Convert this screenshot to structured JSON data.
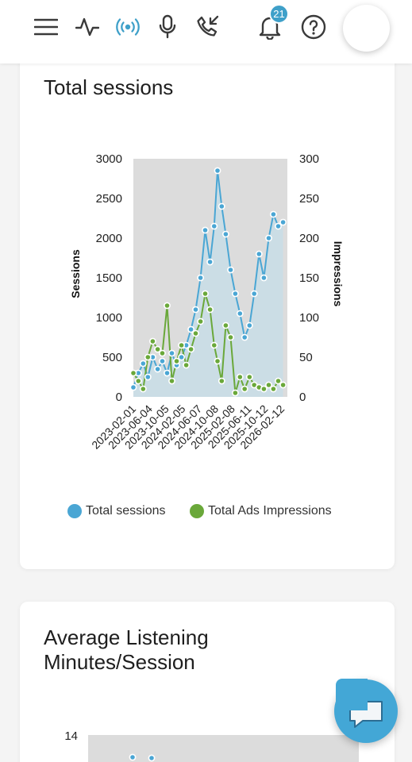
{
  "topbar": {
    "icons": [
      "menu-icon",
      "activity-icon",
      "broadcast-icon",
      "microphone-icon",
      "phone-incoming-icon",
      "bell-icon",
      "help-icon"
    ],
    "notification_count": "21",
    "accent_color": "#3fa0c9"
  },
  "card1": {
    "title": "Total sessions",
    "legend": [
      {
        "label": "Total sessions",
        "color": "#4aa6d4"
      },
      {
        "label": "Total Ads Impressions",
        "color": "#6aa83a"
      }
    ]
  },
  "card2": {
    "title": "Average Listening Minutes/Session",
    "y_tick_top": "14"
  },
  "chart_data": {
    "type": "line",
    "title": "",
    "ylabel": "Sessions",
    "y2label": "Impressions",
    "ylim": [
      0,
      3000
    ],
    "y2lim": [
      0,
      300
    ],
    "y_ticks": [
      "0",
      "500",
      "1000",
      "1500",
      "2000",
      "2500",
      "3000"
    ],
    "y2_ticks": [
      "0",
      "50",
      "100",
      "150",
      "200",
      "250",
      "300"
    ],
    "x_ticks": [
      "2023-02-01",
      "2023-06-04",
      "2023-10-05",
      "2024-02-05",
      "2024-06-07",
      "2024-10-08",
      "2025-02-08",
      "2025-06-11",
      "2025-10-12",
      "2026-02-12"
    ],
    "grid": false,
    "legend_position": "bottom",
    "series": [
      {
        "name": "Total sessions",
        "color": "#4aa6d4",
        "axis": "left",
        "points": [
          [
            "2023-02-01",
            120
          ],
          [
            "2023-03-10",
            300
          ],
          [
            "2023-04-15",
            420
          ],
          [
            "2023-05-20",
            250
          ],
          [
            "2023-06-25",
            500
          ],
          [
            "2023-08-01",
            350
          ],
          [
            "2023-09-05",
            450
          ],
          [
            "2023-10-10",
            300
          ],
          [
            "2023-11-15",
            550
          ],
          [
            "2023-12-20",
            400
          ],
          [
            "2024-01-25",
            500
          ],
          [
            "2024-03-01",
            650
          ],
          [
            "2024-04-05",
            850
          ],
          [
            "2024-05-10",
            1100
          ],
          [
            "2024-06-15",
            1500
          ],
          [
            "2024-07-20",
            2100
          ],
          [
            "2024-08-25",
            1700
          ],
          [
            "2024-09-25",
            2150
          ],
          [
            "2024-10-20",
            2850
          ],
          [
            "2024-11-20",
            2400
          ],
          [
            "2024-12-20",
            2050
          ],
          [
            "2025-01-25",
            1600
          ],
          [
            "2025-03-01",
            1300
          ],
          [
            "2025-04-05",
            1050
          ],
          [
            "2025-05-10",
            750
          ],
          [
            "2025-06-15",
            900
          ],
          [
            "2025-07-20",
            1300
          ],
          [
            "2025-08-25",
            1800
          ],
          [
            "2025-09-30",
            1500
          ],
          [
            "2025-11-05",
            2000
          ],
          [
            "2025-12-10",
            2300
          ],
          [
            "2026-01-15",
            2150
          ],
          [
            "2026-02-20",
            2200
          ]
        ]
      },
      {
        "name": "Total Ads Impressions",
        "color": "#6aa83a",
        "axis": "right",
        "points": [
          [
            "2023-02-01",
            30
          ],
          [
            "2023-03-10",
            20
          ],
          [
            "2023-04-15",
            10
          ],
          [
            "2023-05-20",
            50
          ],
          [
            "2023-06-25",
            70
          ],
          [
            "2023-08-01",
            60
          ],
          [
            "2023-09-05",
            55
          ],
          [
            "2023-10-10",
            115
          ],
          [
            "2023-11-15",
            20
          ],
          [
            "2023-12-20",
            45
          ],
          [
            "2024-01-25",
            65
          ],
          [
            "2024-03-01",
            40
          ],
          [
            "2024-04-05",
            60
          ],
          [
            "2024-05-10",
            80
          ],
          [
            "2024-06-15",
            95
          ],
          [
            "2024-07-20",
            130
          ],
          [
            "2024-08-25",
            110
          ],
          [
            "2024-09-25",
            65
          ],
          [
            "2024-10-20",
            45
          ],
          [
            "2024-11-20",
            20
          ],
          [
            "2024-12-20",
            90
          ],
          [
            "2025-01-25",
            75
          ],
          [
            "2025-03-01",
            5
          ],
          [
            "2025-04-05",
            25
          ],
          [
            "2025-05-10",
            10
          ],
          [
            "2025-06-15",
            25
          ],
          [
            "2025-07-20",
            15
          ],
          [
            "2025-08-25",
            12
          ],
          [
            "2025-09-30",
            10
          ],
          [
            "2025-11-05",
            15
          ],
          [
            "2025-12-10",
            10
          ],
          [
            "2026-01-15",
            20
          ],
          [
            "2026-02-20",
            15
          ]
        ]
      }
    ]
  }
}
